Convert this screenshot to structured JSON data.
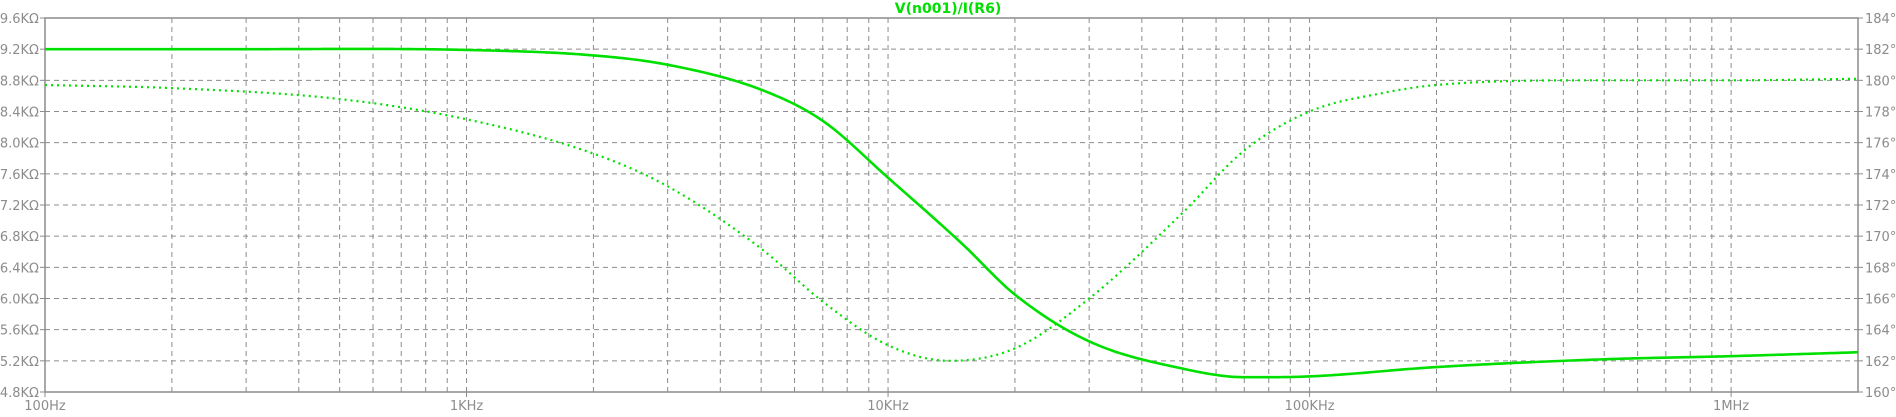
{
  "chart_data": {
    "type": "line",
    "title": "V(n001)/I(R6)",
    "x_scale": "log",
    "xlim_hz": [
      100,
      2000000
    ],
    "x_ticks": [
      {
        "value": 100,
        "label": "100Hz"
      },
      {
        "value": 1000,
        "label": "1KHz"
      },
      {
        "value": 10000,
        "label": "10KHz"
      },
      {
        "value": 100000,
        "label": "100KHz"
      },
      {
        "value": 1000000,
        "label": "1MHz"
      }
    ],
    "left_axis": {
      "unit": "KΩ",
      "ylim": [
        4.8,
        9.6
      ],
      "ticks": [
        {
          "value": 9.6,
          "label": "9.6KΩ"
        },
        {
          "value": 9.2,
          "label": "9.2KΩ"
        },
        {
          "value": 8.8,
          "label": "8.8KΩ"
        },
        {
          "value": 8.4,
          "label": "8.4KΩ"
        },
        {
          "value": 8.0,
          "label": "8.0KΩ"
        },
        {
          "value": 7.6,
          "label": "7.6KΩ"
        },
        {
          "value": 7.2,
          "label": "7.2KΩ"
        },
        {
          "value": 6.8,
          "label": "6.8KΩ"
        },
        {
          "value": 6.4,
          "label": "6.4KΩ"
        },
        {
          "value": 6.0,
          "label": "6.0KΩ"
        },
        {
          "value": 5.6,
          "label": "5.6KΩ"
        },
        {
          "value": 5.2,
          "label": "5.2KΩ"
        },
        {
          "value": 4.8,
          "label": "4.8KΩ"
        }
      ]
    },
    "right_axis": {
      "unit": "°",
      "ylim": [
        160,
        184
      ],
      "ticks": [
        {
          "value": 184,
          "label": "184°"
        },
        {
          "value": 182,
          "label": "182°"
        },
        {
          "value": 180,
          "label": "180°"
        },
        {
          "value": 178,
          "label": "178°"
        },
        {
          "value": 176,
          "label": "176°"
        },
        {
          "value": 174,
          "label": "174°"
        },
        {
          "value": 172,
          "label": "172°"
        },
        {
          "value": 170,
          "label": "170°"
        },
        {
          "value": 168,
          "label": "168°"
        },
        {
          "value": 166,
          "label": "166°"
        },
        {
          "value": 164,
          "label": "164°"
        },
        {
          "value": 162,
          "label": "162°"
        },
        {
          "value": 160,
          "label": "160°"
        }
      ]
    },
    "grid": true,
    "grid_style": "dashed",
    "colors": {
      "trace": "#00e000",
      "grid": "#8c8c8c",
      "frame": "#8c8c8c",
      "background": "#ffffff"
    },
    "series": [
      {
        "quantity": "magnitude",
        "axis": "left",
        "style": "solid",
        "points": [
          [
            100,
            9.2
          ],
          [
            300,
            9.2
          ],
          [
            1000,
            9.19
          ],
          [
            2000,
            9.12
          ],
          [
            3000,
            9.0
          ],
          [
            5000,
            8.68
          ],
          [
            7000,
            8.28
          ],
          [
            10000,
            7.55
          ],
          [
            15000,
            6.7
          ],
          [
            20000,
            6.05
          ],
          [
            30000,
            5.45
          ],
          [
            50000,
            5.1
          ],
          [
            70000,
            4.99
          ],
          [
            100000,
            5.0
          ],
          [
            200000,
            5.12
          ],
          [
            500000,
            5.22
          ],
          [
            1000000,
            5.26
          ],
          [
            2000000,
            5.31
          ]
        ]
      },
      {
        "quantity": "phase",
        "axis": "right",
        "style": "dotted",
        "points": [
          [
            100,
            179.7
          ],
          [
            200,
            179.5
          ],
          [
            500,
            178.8
          ],
          [
            1000,
            177.5
          ],
          [
            2000,
            175.3
          ],
          [
            3000,
            173.2
          ],
          [
            5000,
            169.2
          ],
          [
            7000,
            165.8
          ],
          [
            10000,
            163.0
          ],
          [
            14000,
            162.0
          ],
          [
            20000,
            162.8
          ],
          [
            30000,
            166.0
          ],
          [
            50000,
            171.5
          ],
          [
            70000,
            175.5
          ],
          [
            100000,
            178.0
          ],
          [
            150000,
            179.2
          ],
          [
            200000,
            179.7
          ],
          [
            500000,
            180.0
          ],
          [
            1000000,
            180.0
          ],
          [
            2000000,
            180.1
          ]
        ]
      }
    ]
  }
}
